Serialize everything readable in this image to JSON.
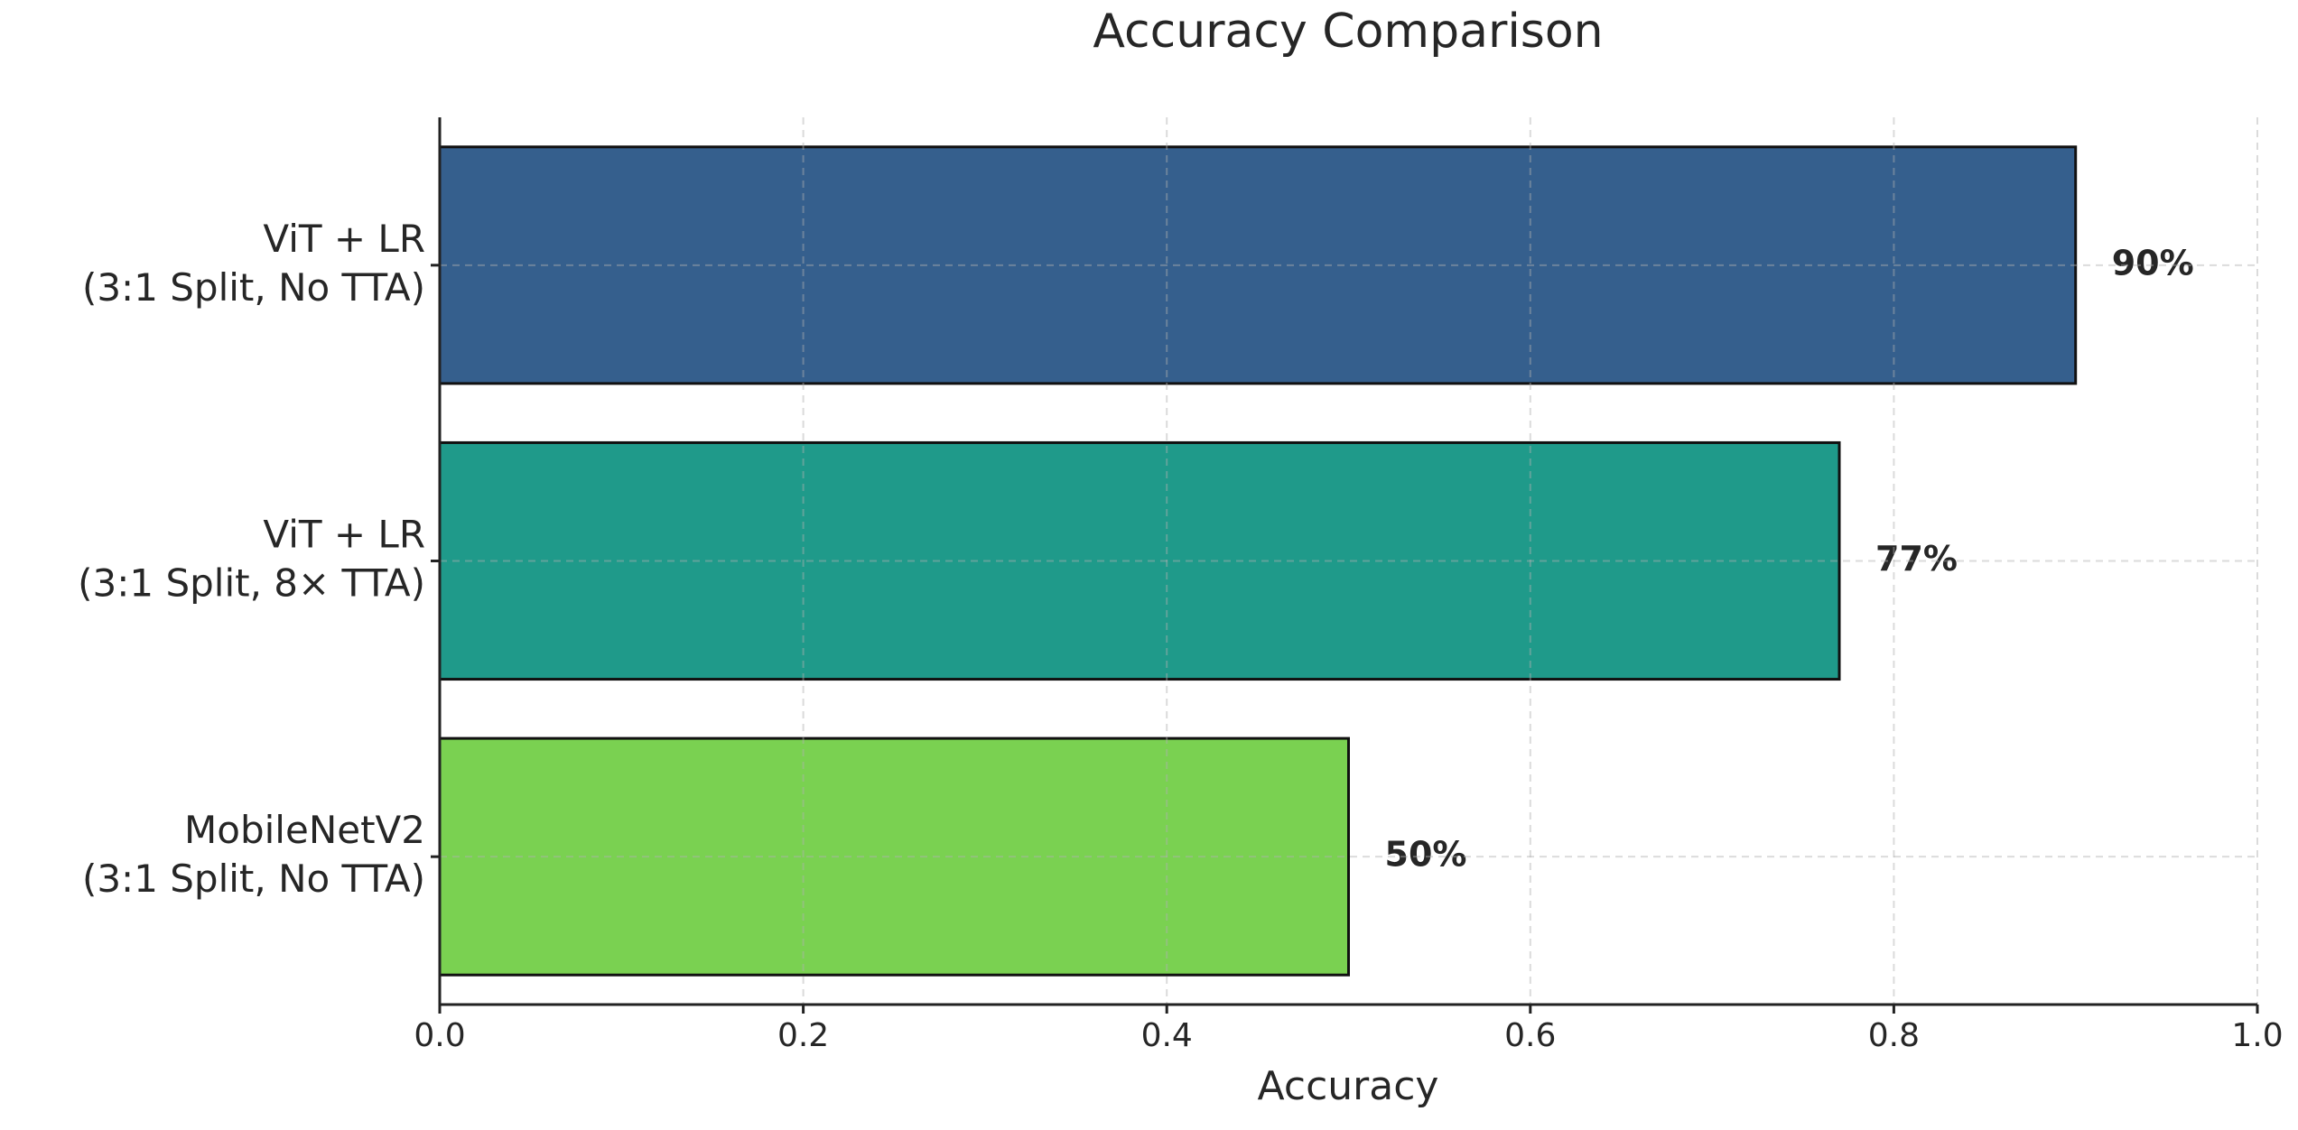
{
  "chart_data": {
    "type": "barh",
    "title": "Accuracy Comparison",
    "x_label": "Accuracy",
    "categories": [
      [
        "ViT + LR",
        "(3:1 Split, No TTA)"
      ],
      [
        "ViT + LR",
        "(3:1 Split, 8× TTA)"
      ],
      [
        "MobileNetV2",
        "(3:1 Split, No TTA)"
      ]
    ],
    "values": [
      0.9,
      0.77,
      0.5
    ],
    "value_labels": [
      "90%",
      "77%",
      "50%"
    ],
    "colors": [
      "#355f8d",
      "#1f9a8a",
      "#7ad151"
    ],
    "xlim": [
      0,
      1
    ],
    "xticks": [
      {
        "value": 0,
        "label": "0.0"
      },
      {
        "value": 0.2,
        "label": "0.2"
      },
      {
        "value": 0.4,
        "label": "0.4"
      },
      {
        "value": 0.6,
        "label": "0.6"
      },
      {
        "value": 0.8,
        "label": "0.8"
      },
      {
        "value": 1,
        "label": "1.0"
      }
    ],
    "grid": true
  }
}
